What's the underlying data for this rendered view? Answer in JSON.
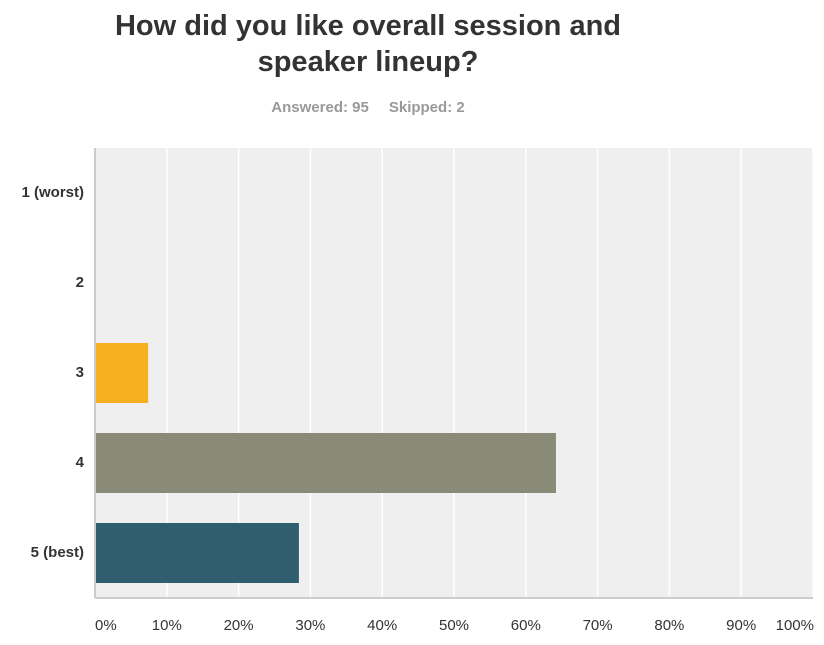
{
  "chart_data": {
    "type": "bar",
    "orientation": "horizontal",
    "title": "How did you like overall session and speaker lineup?",
    "answered": "Answered: 95",
    "skipped": "Skipped: 2",
    "categories": [
      "1 (worst)",
      "2",
      "3",
      "4",
      "5 (best)"
    ],
    "values": [
      0,
      0,
      7.4,
      64.2,
      28.4
    ],
    "colors": [
      null,
      null,
      "#f7b020",
      "#8a8a78",
      "#2f5f6e"
    ],
    "xlim": [
      0,
      100
    ],
    "xticks": [
      {
        "value": 0,
        "label": "0%"
      },
      {
        "value": 10,
        "label": "10%"
      },
      {
        "value": 20,
        "label": "20%"
      },
      {
        "value": 30,
        "label": "30%"
      },
      {
        "value": 40,
        "label": "40%"
      },
      {
        "value": 50,
        "label": "50%"
      },
      {
        "value": 60,
        "label": "60%"
      },
      {
        "value": 70,
        "label": "70%"
      },
      {
        "value": 80,
        "label": "80%"
      },
      {
        "value": 90,
        "label": "90%"
      },
      {
        "value": 100,
        "label": "100%"
      }
    ],
    "grid": true
  }
}
